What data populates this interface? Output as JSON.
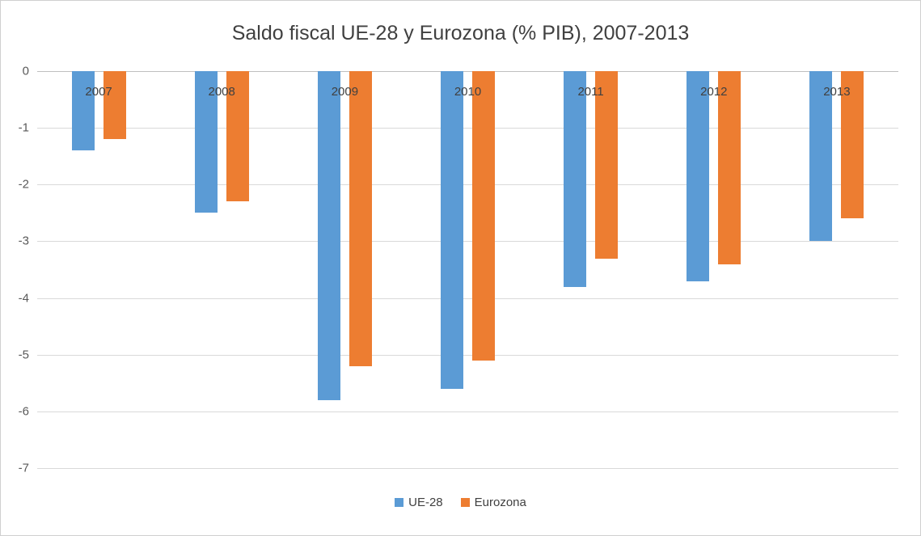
{
  "chart_data": {
    "type": "bar",
    "title": "Saldo fiscal UE-28 y Eurozona (% PIB), 2007-2013",
    "categories": [
      "2007",
      "2008",
      "2009",
      "2010",
      "2011",
      "2012",
      "2013"
    ],
    "series": [
      {
        "name": "UE-28",
        "color": "#5B9BD5",
        "values": [
          -1.4,
          -2.5,
          -5.8,
          -5.6,
          -3.8,
          -3.7,
          -3.0
        ]
      },
      {
        "name": "Eurozona",
        "color": "#ED7D31",
        "values": [
          -1.2,
          -2.3,
          -5.2,
          -5.1,
          -3.3,
          -3.4,
          -2.6
        ]
      }
    ],
    "xlabel": "",
    "ylabel": "",
    "ylim": [
      0,
      -7
    ],
    "y_ticks": [
      0,
      -1,
      -2,
      -3,
      -4,
      -5,
      -6,
      -7
    ],
    "grid": true,
    "legend_position": "bottom",
    "colors": {
      "gridline": "#D9D9D9",
      "zero_line": "#BFBFBF",
      "title_text": "#404040",
      "axis_text": "#595959",
      "background": "#FFFFFF"
    }
  }
}
